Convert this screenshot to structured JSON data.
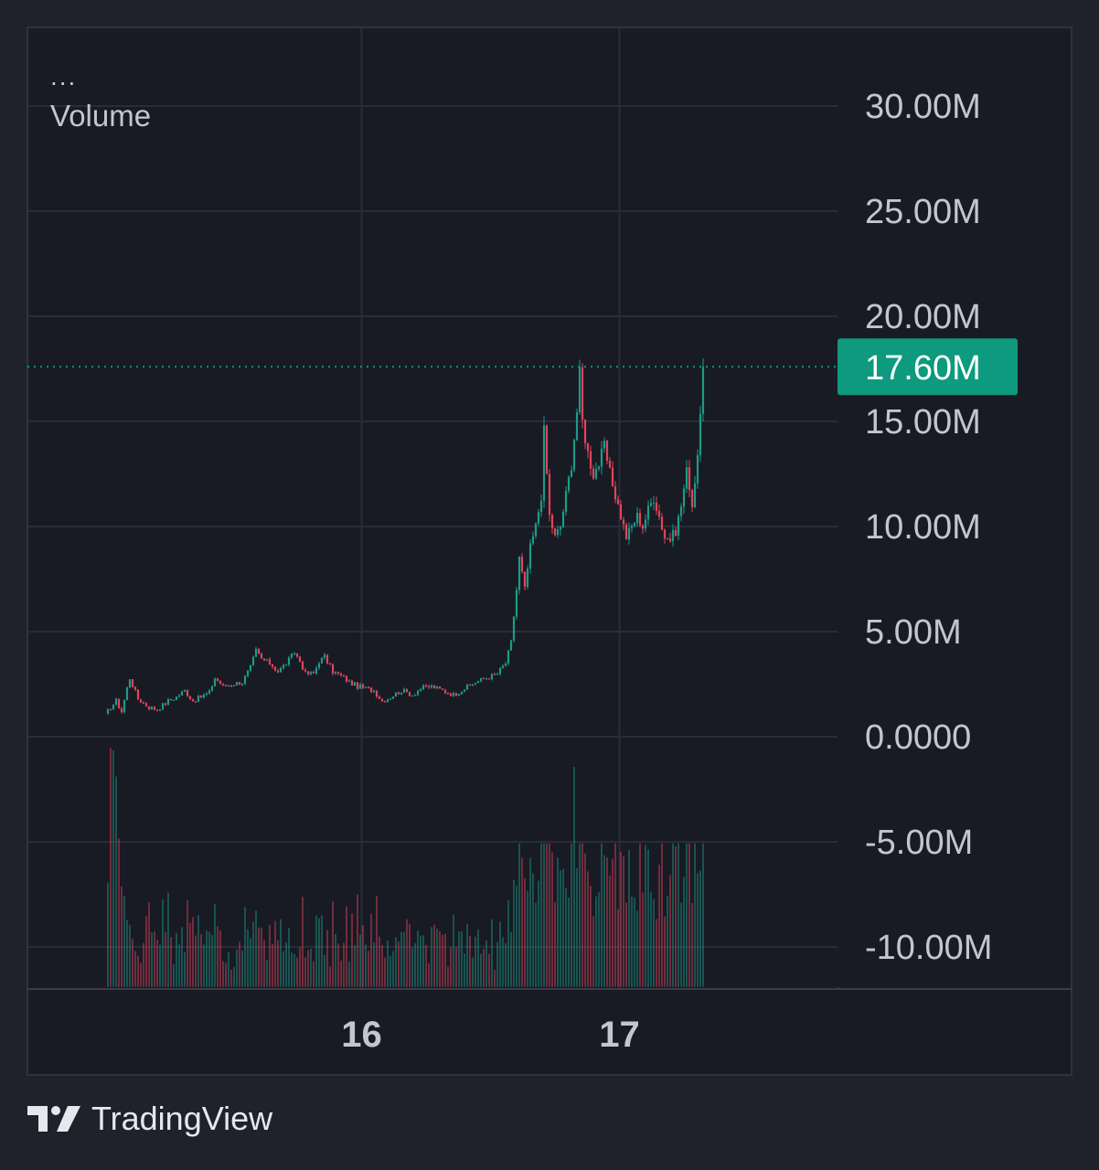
{
  "legend": {
    "menu_glyph": "...",
    "indicator_label": "Volume"
  },
  "brand": {
    "logo_icon": "tradingview-logo-icon",
    "name": "TradingView"
  },
  "colors": {
    "background": "#1f212b",
    "plot_background": "#181a24",
    "grid": "#2a2d38",
    "axis_text": "#c3c6cf",
    "up": "#1a9c86",
    "down": "#e0445a",
    "last_price_badge": "#0d9a7e",
    "last_price_text": "#ffffff"
  },
  "chart_data": {
    "type": "candlestick",
    "y_axis": {
      "ticks": [
        30000000,
        25000000,
        20000000,
        15000000,
        10000000,
        5000000,
        0,
        -5000000,
        -10000000
      ],
      "tick_labels": [
        "30.00M",
        "25.00M",
        "20.00M",
        "15.00M",
        "10.00M",
        "5.00M",
        "0.0000",
        "-5.00M",
        "-10.00M"
      ],
      "range": [
        -11900000,
        33700000
      ]
    },
    "x_axis": {
      "tick_labels": [
        "16",
        "17"
      ],
      "day_16_at_bar": 93.5,
      "day_17_at_bar": 187.5,
      "bar_count": 218
    },
    "last_price": {
      "value": 17600000,
      "label": "17.60M",
      "line_style": "dotted"
    },
    "anchors": [
      [
        0,
        1.0
      ],
      [
        2,
        1.4
      ],
      [
        4,
        1.7
      ],
      [
        6,
        1.2
      ],
      [
        8,
        2.3
      ],
      [
        9,
        2.8
      ],
      [
        12,
        1.8
      ],
      [
        16,
        1.4
      ],
      [
        19,
        1.3
      ],
      [
        23,
        1.7
      ],
      [
        26,
        1.9
      ],
      [
        29,
        2.2
      ],
      [
        32,
        1.7
      ],
      [
        35,
        1.9
      ],
      [
        38,
        2.1
      ],
      [
        40,
        2.8
      ],
      [
        43,
        2.4
      ],
      [
        46,
        2.5
      ],
      [
        50,
        2.6
      ],
      [
        53,
        3.3
      ],
      [
        55,
        4.1
      ],
      [
        57,
        3.7
      ],
      [
        60,
        3.5
      ],
      [
        63,
        3.1
      ],
      [
        66,
        3.5
      ],
      [
        69,
        4.0
      ],
      [
        71,
        3.6
      ],
      [
        73,
        3.0
      ],
      [
        76,
        3.0
      ],
      [
        78,
        3.6
      ],
      [
        80,
        3.8
      ],
      [
        83,
        3.1
      ],
      [
        86,
        2.9
      ],
      [
        89,
        2.6
      ],
      [
        92,
        2.4
      ],
      [
        95,
        2.3
      ],
      [
        98,
        2.2
      ],
      [
        101,
        1.7
      ],
      [
        104,
        1.9
      ],
      [
        108,
        2.2
      ],
      [
        112,
        2.0
      ],
      [
        115,
        2.3
      ],
      [
        119,
        2.4
      ],
      [
        123,
        2.2
      ],
      [
        127,
        2.0
      ],
      [
        131,
        2.3
      ],
      [
        135,
        2.6
      ],
      [
        139,
        2.8
      ],
      [
        143,
        3.0
      ],
      [
        146,
        3.5
      ],
      [
        148,
        4.5
      ],
      [
        150,
        7.0
      ],
      [
        151,
        8.5
      ],
      [
        153,
        7.0
      ],
      [
        155,
        9.0
      ],
      [
        157,
        10.0
      ],
      [
        159,
        11.5
      ],
      [
        160,
        14.5
      ],
      [
        162,
        10.5
      ],
      [
        164,
        9.5
      ],
      [
        166,
        10.0
      ],
      [
        168,
        11.5
      ],
      [
        170,
        13.0
      ],
      [
        172,
        15.5
      ],
      [
        173,
        17.2
      ],
      [
        174,
        15.0
      ],
      [
        176,
        13.5
      ],
      [
        178,
        12.5
      ],
      [
        180,
        13.0
      ],
      [
        182,
        13.8
      ],
      [
        184,
        12.5
      ],
      [
        186,
        11.5
      ],
      [
        188,
        10.5
      ],
      [
        190,
        9.5
      ],
      [
        192,
        10.0
      ],
      [
        194,
        10.5
      ],
      [
        196,
        10.0
      ],
      [
        198,
        10.8
      ],
      [
        200,
        11.4
      ],
      [
        202,
        10.5
      ],
      [
        204,
        9.5
      ],
      [
        206,
        9.4
      ],
      [
        208,
        9.8
      ],
      [
        210,
        11.0
      ],
      [
        212,
        12.6
      ],
      [
        213,
        12.0
      ],
      [
        214,
        11.0
      ],
      [
        216,
        13.5
      ],
      [
        217,
        15.0
      ],
      [
        218,
        17.6
      ]
    ],
    "volume": {
      "panel_baseline_value": -11900000,
      "panel_top_value": 0,
      "spikes": [
        [
          2,
          1.0
        ],
        [
          3,
          0.99
        ],
        [
          4,
          0.88
        ],
        [
          5,
          0.62
        ],
        [
          6,
          0.42
        ],
        [
          7,
          0.38
        ],
        [
          8,
          0.28
        ],
        [
          9,
          0.26
        ],
        [
          10,
          0.2
        ],
        [
          11,
          0.15
        ],
        [
          12,
          0.13
        ],
        [
          13,
          0.1
        ]
      ]
    }
  }
}
